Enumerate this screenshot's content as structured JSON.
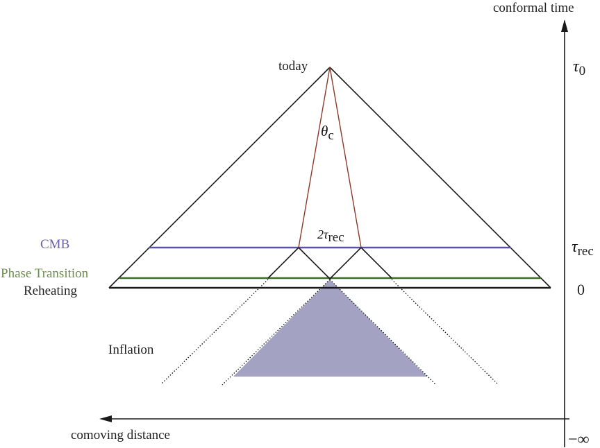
{
  "diagram": {
    "axis_time_label": "conformal time",
    "axis_distance_label": "comoving distance",
    "today_label": "today",
    "theta_symbol": "θ",
    "theta_sub": "c",
    "two_tau_prefix": "2τ",
    "two_tau_sub": "rec",
    "cmb_label": "CMB",
    "phase_transition_label": "Phase Transition",
    "reheating_label": "Reheating",
    "inflation_label": "Inflation",
    "tick_tau0_symbol": "τ",
    "tick_tau0_sub": "0",
    "tick_taurec_symbol": "τ",
    "tick_taurec_sub": "rec",
    "tick_zero": "0",
    "tick_minus_infinity": "−∞",
    "colors": {
      "cmb": "#5a52a8",
      "phase_transition": "#3f6b2a",
      "phase_transition_text": "#6b8f4a",
      "cmb_text": "#6a62b0",
      "sight_lines": "#8b3a2a",
      "inflation_fill": "#a3a2c2",
      "lines": "#1a1a1a"
    }
  }
}
